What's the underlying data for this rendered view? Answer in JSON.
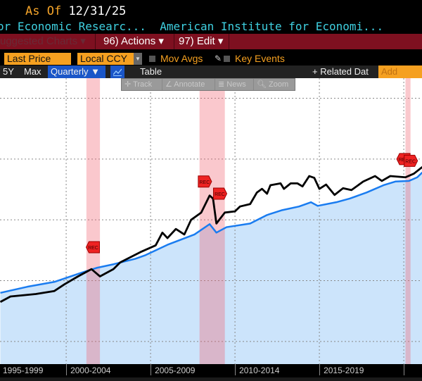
{
  "header": {
    "as_of_label": "As Of",
    "as_of_date": "12/31/25",
    "title1": "or Economic Researc...",
    "title2": "American Institute for Economi..."
  },
  "menu": {
    "suggested": "uggested Charts ▾",
    "actions": "96) Actions ▾",
    "edit": "97) Edit ▾"
  },
  "controls": {
    "field": "Last Price",
    "currency": "Local CCY",
    "dropdown_arrow": "▼",
    "mov_avgs": "Mov Avgs",
    "key_events": "Key Events"
  },
  "toolbar": {
    "five_y": "5Y",
    "max": "Max",
    "period": "Quarterly ▼",
    "table": "Table",
    "related": "+ Related Dat",
    "add_data": "Add Data"
  },
  "float_tools": {
    "track": "✛ Track",
    "annotate": "∠ Annotate",
    "news": "≣ News",
    "zoom": "🔍︎ Zoom"
  },
  "chart_data": {
    "type": "line",
    "xlim": [
      1996.08,
      2021.08
    ],
    "ylim": [
      0.628,
      5.33
    ],
    "gridlines_y": [
      1,
      2,
      3,
      4,
      5
    ],
    "gridlines_x": [
      2000,
      2005,
      2010,
      2015,
      2020
    ],
    "xticks": [
      {
        "label": "1995-1999",
        "start": 1995
      },
      {
        "label": "2000-2004",
        "start": 2000
      },
      {
        "label": "2005-2009",
        "start": 2005
      },
      {
        "label": "2010-2014",
        "start": 2010
      },
      {
        "label": "2015-2019",
        "start": 2015
      }
    ],
    "recessions": [
      [
        2001.2,
        2002.0
      ],
      [
        2007.9,
        2009.4
      ],
      [
        2020.1,
        2020.4
      ]
    ],
    "series": [
      {
        "name": "black",
        "color": "#000000",
        "fill": false,
        "x": [
          1996.1,
          1996.7,
          1998.2,
          1999.3,
          1999.9,
          2000.7,
          2001.5,
          2002.0,
          2002.8,
          2003.2,
          2004.4,
          2005.3,
          2005.7,
          2006.0,
          2006.5,
          2007.0,
          2007.4,
          2008.0,
          2008.5,
          2008.7,
          2008.9,
          2009.4,
          2010.0,
          2010.3,
          2010.9,
          2011.3,
          2011.6,
          2011.9,
          2012.1,
          2012.7,
          2012.9,
          2013.3,
          2013.7,
          2014.0,
          2014.4,
          2014.7,
          2015.0,
          2015.4,
          2015.9,
          2016.4,
          2016.9,
          2017.6,
          2018.3,
          2018.7,
          2019.2,
          2020.1,
          2020.6,
          2021.1
        ],
        "y": [
          1.65,
          1.74,
          1.78,
          1.83,
          1.94,
          2.07,
          2.19,
          2.07,
          2.19,
          2.3,
          2.47,
          2.58,
          2.79,
          2.7,
          2.85,
          2.76,
          3.0,
          3.12,
          3.4,
          3.35,
          2.94,
          3.12,
          3.14,
          3.22,
          3.26,
          3.45,
          3.51,
          3.43,
          3.57,
          3.6,
          3.51,
          3.6,
          3.6,
          3.55,
          3.72,
          3.69,
          3.51,
          3.58,
          3.41,
          3.52,
          3.49,
          3.63,
          3.72,
          3.64,
          3.72,
          3.7,
          3.76,
          3.87
        ]
      },
      {
        "name": "blue",
        "color": "#1a7cf0",
        "fill": true,
        "x": [
          1996.1,
          1997.7,
          1999.3,
          2000.9,
          2001.8,
          2002.8,
          2004.1,
          2004.7,
          2006.0,
          2007.6,
          2008.5,
          2008.9,
          2009.5,
          2010.9,
          2011.9,
          2012.8,
          2013.8,
          2014.5,
          2014.9,
          2016.0,
          2016.8,
          2017.8,
          2018.8,
          2019.5,
          2020.3,
          2020.8,
          2021.1
        ],
        "y": [
          1.8,
          1.9,
          1.98,
          2.13,
          2.21,
          2.27,
          2.36,
          2.42,
          2.59,
          2.76,
          2.93,
          2.79,
          2.88,
          2.94,
          3.08,
          3.16,
          3.22,
          3.29,
          3.23,
          3.29,
          3.35,
          3.45,
          3.57,
          3.63,
          3.64,
          3.7,
          3.78
        ]
      }
    ],
    "events": [
      {
        "label": "REC",
        "x": 2001.6,
        "y": 2.55,
        "dir": "left"
      },
      {
        "label": "REC",
        "x": 2008.2,
        "y": 3.63,
        "dir": "right"
      },
      {
        "label": "REC",
        "x": 2009.1,
        "y": 3.43,
        "dir": "right"
      },
      {
        "label": "REC",
        "x": 2020.0,
        "y": 4.0,
        "dir": "left"
      },
      {
        "label": "REC",
        "x": 2020.4,
        "y": 3.97,
        "dir": "right"
      }
    ]
  }
}
